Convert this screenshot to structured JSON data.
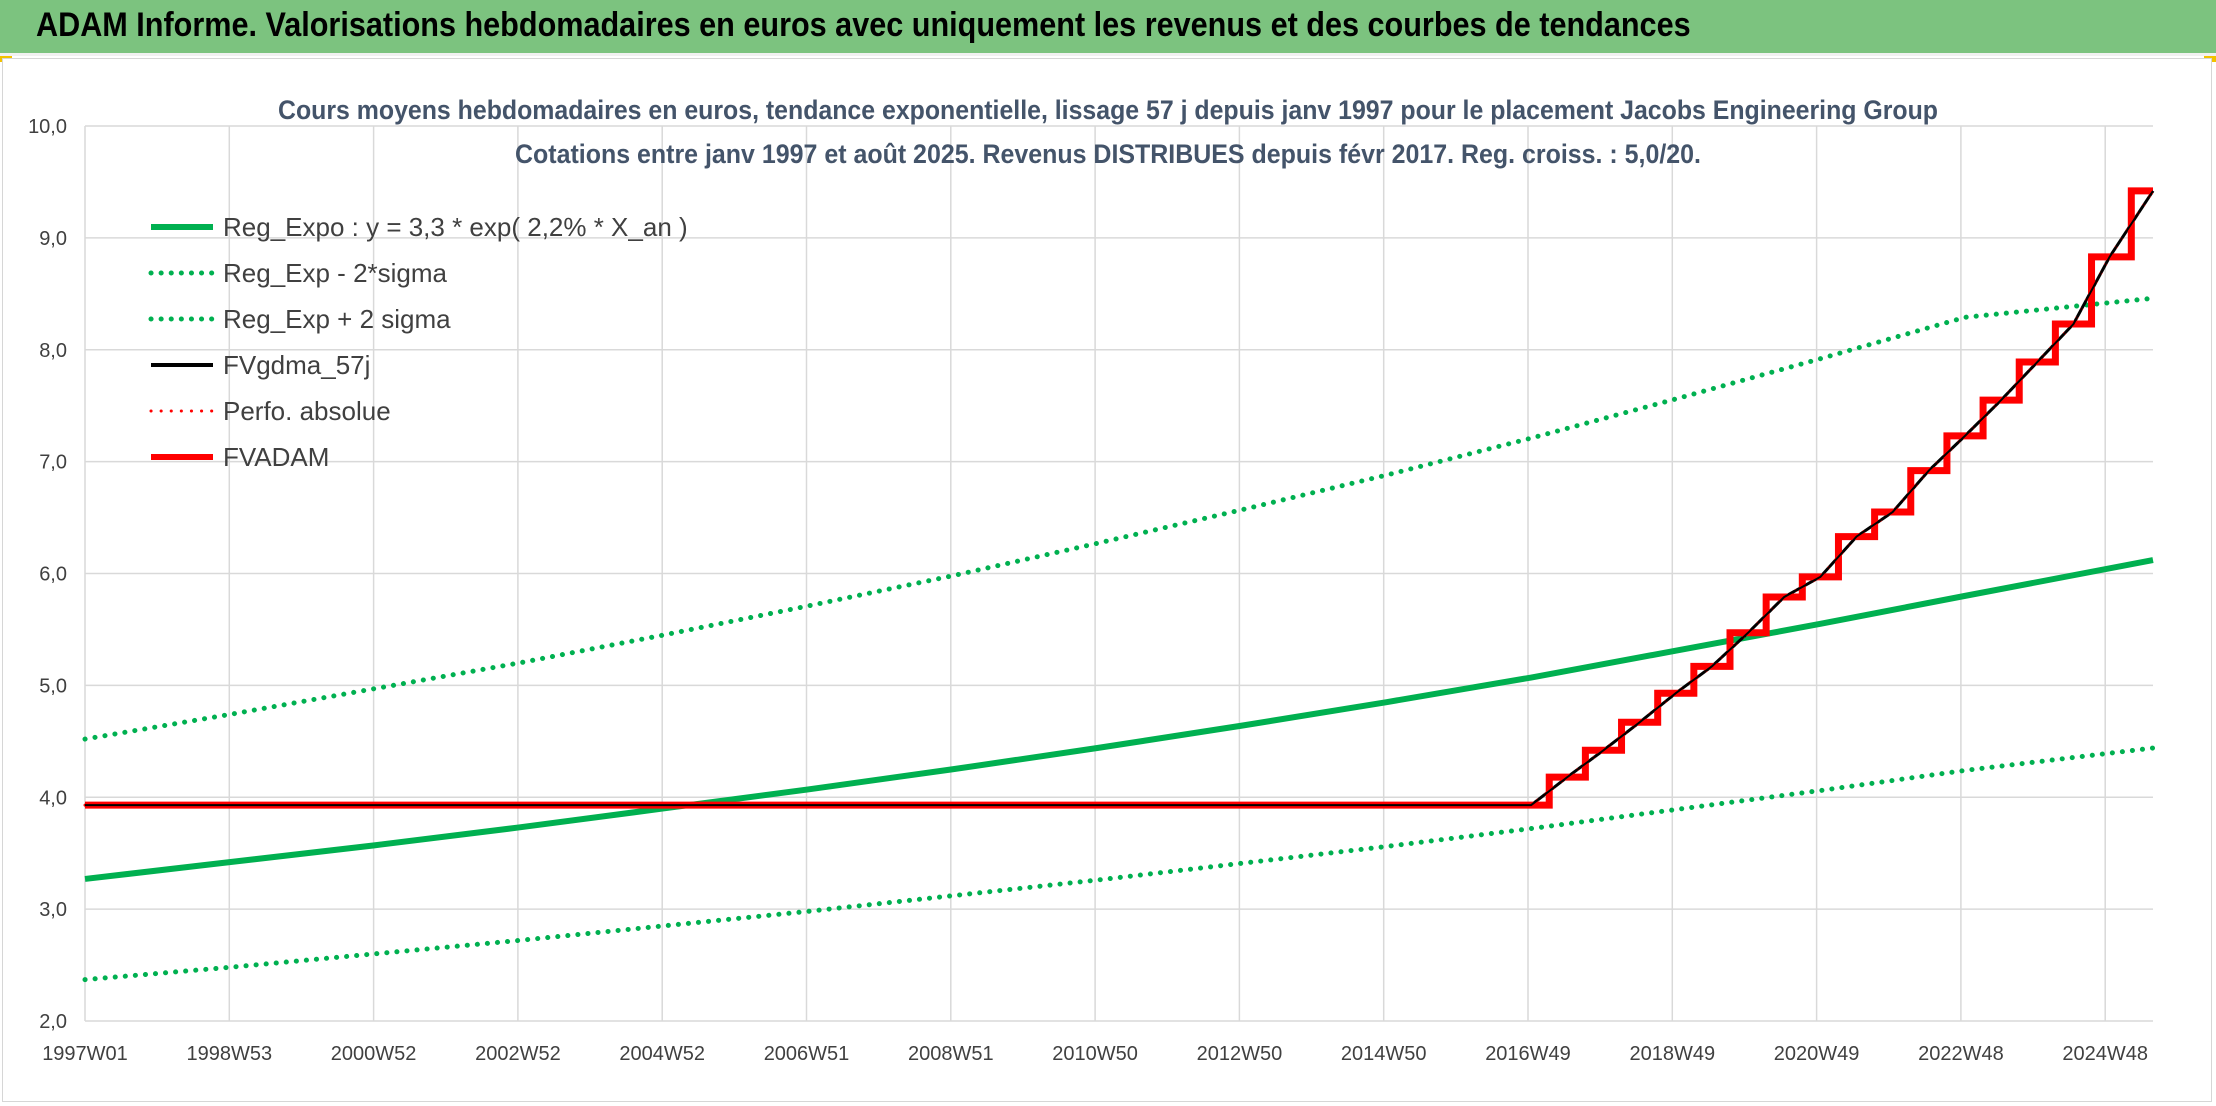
{
  "header": {
    "title": "ADAM Informe. Valorisations hebdomadaires en euros avec uniquement les revenus et des courbes de tendances"
  },
  "colors": {
    "header_bg": "#7cc37f",
    "green": "#00b050",
    "red": "#ff0000",
    "black": "#000000",
    "grid": "#d9d9d9"
  },
  "chart_data": {
    "type": "line",
    "title": "Cours moyens hebdomadaires en euros, tendance exponentielle, lissage 57 j depuis janv 1997 pour le placement Jacobs Engineering Group",
    "subtitle": "Cotations entre janv 1997 et août 2025. Revenus DISTRIBUES depuis févr 2017. Reg. croiss. : 5,0/20.",
    "xlabel": "",
    "ylabel": "",
    "ylim": [
      2.0,
      10.0
    ],
    "y_ticks": [
      "2,0",
      "3,0",
      "4,0",
      "5,0",
      "6,0",
      "7,0",
      "8,0",
      "9,0",
      "10,0"
    ],
    "x_ticks": [
      "1997W01",
      "1998W53",
      "2000W52",
      "2002W52",
      "2004W52",
      "2006W51",
      "2008W51",
      "2010W50",
      "2012W50",
      "2014W50",
      "2016W49",
      "2018W49",
      "2020W49",
      "2022W48",
      "2024W48"
    ],
    "x_range": [
      "1997W01",
      "2025W33"
    ],
    "grid": true,
    "legend_position": "top-left",
    "series": [
      {
        "name": "Reg_Expo : y = 3,3 * exp( 2,2% *  X_an )",
        "style": "solid",
        "color": "#00b050",
        "x": [
          1997.0,
          1999.0,
          2001.0,
          2003.0,
          2005.0,
          2007.0,
          2009.0,
          2011.0,
          2013.0,
          2015.0,
          2017.0,
          2019.0,
          2021.0,
          2023.0,
          2025.6
        ],
        "y": [
          3.27,
          3.42,
          3.57,
          3.73,
          3.9,
          4.07,
          4.25,
          4.44,
          4.64,
          4.85,
          5.07,
          5.31,
          5.55,
          5.8,
          6.12
        ]
      },
      {
        "name": "Reg_Exp - 2*sigma",
        "style": "dotted",
        "color": "#00b050",
        "x": [
          1997.0,
          1999.0,
          2001.0,
          2003.0,
          2005.0,
          2007.0,
          2009.0,
          2011.0,
          2013.0,
          2015.0,
          2017.0,
          2019.0,
          2021.0,
          2023.0,
          2025.6
        ],
        "y": [
          2.37,
          2.48,
          2.6,
          2.72,
          2.85,
          2.98,
          3.12,
          3.26,
          3.41,
          3.56,
          3.72,
          3.89,
          4.06,
          4.24,
          4.44
        ]
      },
      {
        "name": "Reg_Exp + 2 sigma",
        "style": "dotted",
        "color": "#00b050",
        "x": [
          1997.0,
          1999.0,
          2001.0,
          2003.0,
          2005.0,
          2007.0,
          2009.0,
          2011.0,
          2013.0,
          2015.0,
          2017.0,
          2019.0,
          2021.0,
          2023.0,
          2025.6
        ],
        "y": [
          4.52,
          4.74,
          4.97,
          5.2,
          5.45,
          5.71,
          5.98,
          6.27,
          6.57,
          6.88,
          7.21,
          7.56,
          7.92,
          8.29,
          8.46
        ]
      },
      {
        "name": "FVgdma_57j",
        "style": "solid",
        "color": "#000000",
        "x": [
          1997.0,
          2017.0,
          2017.5,
          2018.0,
          2018.5,
          2019.0,
          2019.5,
          2020.0,
          2020.5,
          2021.0,
          2021.5,
          2022.0,
          2022.5,
          2023.0,
          2023.5,
          2024.0,
          2024.5,
          2025.0,
          2025.6
        ],
        "y": [
          3.93,
          3.93,
          4.18,
          4.42,
          4.67,
          4.93,
          5.17,
          5.47,
          5.79,
          5.97,
          6.33,
          6.55,
          6.92,
          7.23,
          7.55,
          7.89,
          8.23,
          8.83,
          9.42
        ]
      },
      {
        "name": "Perfo. absolue",
        "style": "dotted",
        "color": "#ff0000",
        "x": [
          1997.0,
          2017.0,
          2017.5,
          2018.0,
          2018.5,
          2019.0,
          2019.5,
          2020.0,
          2020.5,
          2021.0,
          2021.5,
          2022.0,
          2022.5,
          2023.0,
          2023.5,
          2024.0,
          2024.5,
          2025.0,
          2025.6
        ],
        "y": [
          3.93,
          3.93,
          4.18,
          4.42,
          4.67,
          4.93,
          5.17,
          5.47,
          5.79,
          5.97,
          6.33,
          6.55,
          6.92,
          7.23,
          7.55,
          7.89,
          8.23,
          8.83,
          9.42
        ]
      },
      {
        "name": "FVADAM",
        "style": "solid-thick",
        "color": "#ff0000",
        "x": [
          1997.0,
          2017.0,
          2017.5,
          2018.0,
          2018.5,
          2019.0,
          2019.5,
          2020.0,
          2020.5,
          2021.0,
          2021.5,
          2022.0,
          2022.5,
          2023.0,
          2023.5,
          2024.0,
          2024.5,
          2025.0,
          2025.6
        ],
        "y": [
          3.93,
          3.93,
          4.18,
          4.42,
          4.67,
          4.93,
          5.17,
          5.47,
          5.79,
          5.97,
          6.33,
          6.55,
          6.92,
          7.23,
          7.55,
          7.89,
          8.23,
          8.83,
          9.42
        ]
      }
    ]
  }
}
